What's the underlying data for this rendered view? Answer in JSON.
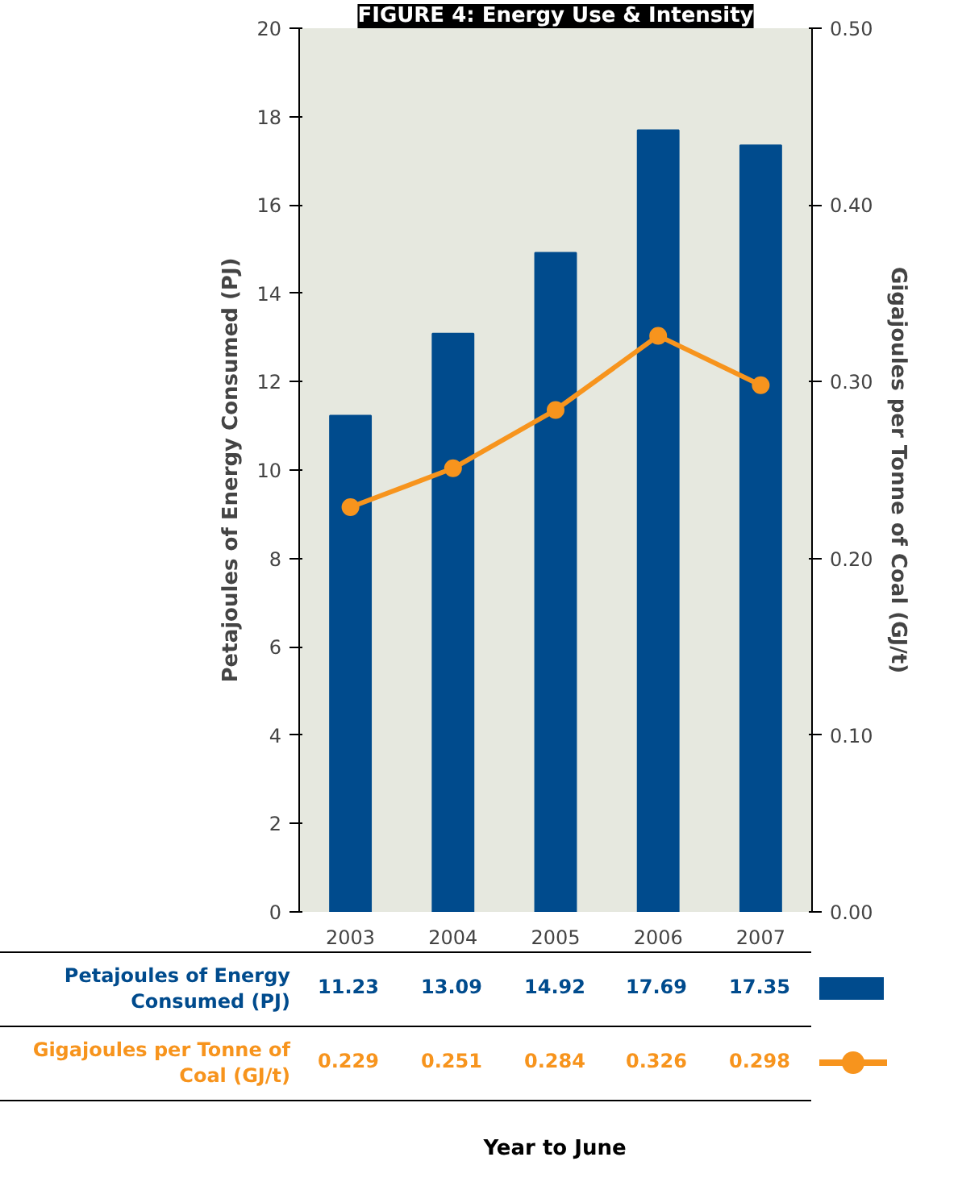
{
  "chart_data": {
    "type": "bar",
    "title": "FIGURE 4: Energy Use & Intensity",
    "categories": [
      "2003",
      "2004",
      "2005",
      "2006",
      "2007"
    ],
    "series": [
      {
        "name": "Petajoules of Energy Consumed (PJ)",
        "color": "#004b8d",
        "values": [
          11.23,
          13.09,
          14.92,
          17.69,
          17.35
        ]
      },
      {
        "name": "Gigajoules per Tonne of Coal (GJ/t)",
        "color": "#f7941d",
        "type": "line",
        "axis": "y2",
        "marker": "circle",
        "values": [
          0.229,
          0.251,
          0.284,
          0.326,
          0.298
        ]
      }
    ],
    "ylabel": "Petajoules of Energy Consumed (PJ)",
    "y2label": "Gigajoules per Tonne of Coal (GJ/t)",
    "annotations": [
      "Year to June"
    ],
    "ylim": [
      0,
      20
    ],
    "yticks": [
      0,
      2,
      4,
      6,
      8,
      10,
      12,
      14,
      16,
      18,
      20
    ],
    "y2lim": [
      0,
      0.5
    ],
    "y2ticks": [
      {
        "value": 0,
        "label": "0.00"
      },
      {
        "value": 0.1,
        "label": "0.10"
      },
      {
        "value": 0.2,
        "label": "0.20"
      },
      {
        "value": 0.3,
        "label": "0.30"
      },
      {
        "value": 0.4,
        "label": "0.40"
      },
      {
        "value": 0.5,
        "label": "0.50"
      }
    ],
    "data_labels": true,
    "legend": "bottom",
    "grid": false
  }
}
